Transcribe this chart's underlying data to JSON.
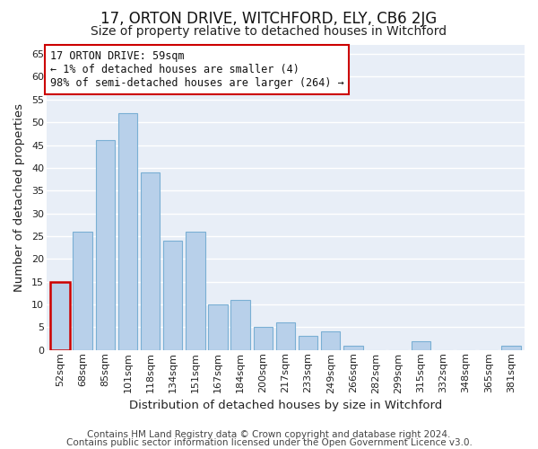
{
  "title": "17, ORTON DRIVE, WITCHFORD, ELY, CB6 2JG",
  "subtitle": "Size of property relative to detached houses in Witchford",
  "xlabel": "Distribution of detached houses by size in Witchford",
  "ylabel": "Number of detached properties",
  "bar_labels": [
    "52sqm",
    "68sqm",
    "85sqm",
    "101sqm",
    "118sqm",
    "134sqm",
    "151sqm",
    "167sqm",
    "184sqm",
    "200sqm",
    "217sqm",
    "233sqm",
    "249sqm",
    "266sqm",
    "282sqm",
    "299sqm",
    "315sqm",
    "332sqm",
    "348sqm",
    "365sqm",
    "381sqm"
  ],
  "bar_values": [
    15,
    26,
    46,
    52,
    39,
    24,
    26,
    10,
    11,
    5,
    6,
    3,
    4,
    1,
    0,
    0,
    2,
    0,
    0,
    0,
    1
  ],
  "bar_color": "#b8d0ea",
  "bar_edge_color": "#7aafd4",
  "highlight_index": 0,
  "highlight_edge_color": "#cc0000",
  "ylim": [
    0,
    67
  ],
  "yticks": [
    0,
    5,
    10,
    15,
    20,
    25,
    30,
    35,
    40,
    45,
    50,
    55,
    60,
    65
  ],
  "annotation_title": "17 ORTON DRIVE: 59sqm",
  "annotation_line1": "← 1% of detached houses are smaller (4)",
  "annotation_line2": "98% of semi-detached houses are larger (264) →",
  "annotation_box_edge_color": "#cc0000",
  "footer_line1": "Contains HM Land Registry data © Crown copyright and database right 2024.",
  "footer_line2": "Contains public sector information licensed under the Open Government Licence v3.0.",
  "background_color": "#ffffff",
  "plot_bg_color": "#e8eef7",
  "grid_color": "#ffffff",
  "title_fontsize": 12,
  "subtitle_fontsize": 10,
  "axis_label_fontsize": 9.5,
  "tick_fontsize": 8,
  "footer_fontsize": 7.5
}
